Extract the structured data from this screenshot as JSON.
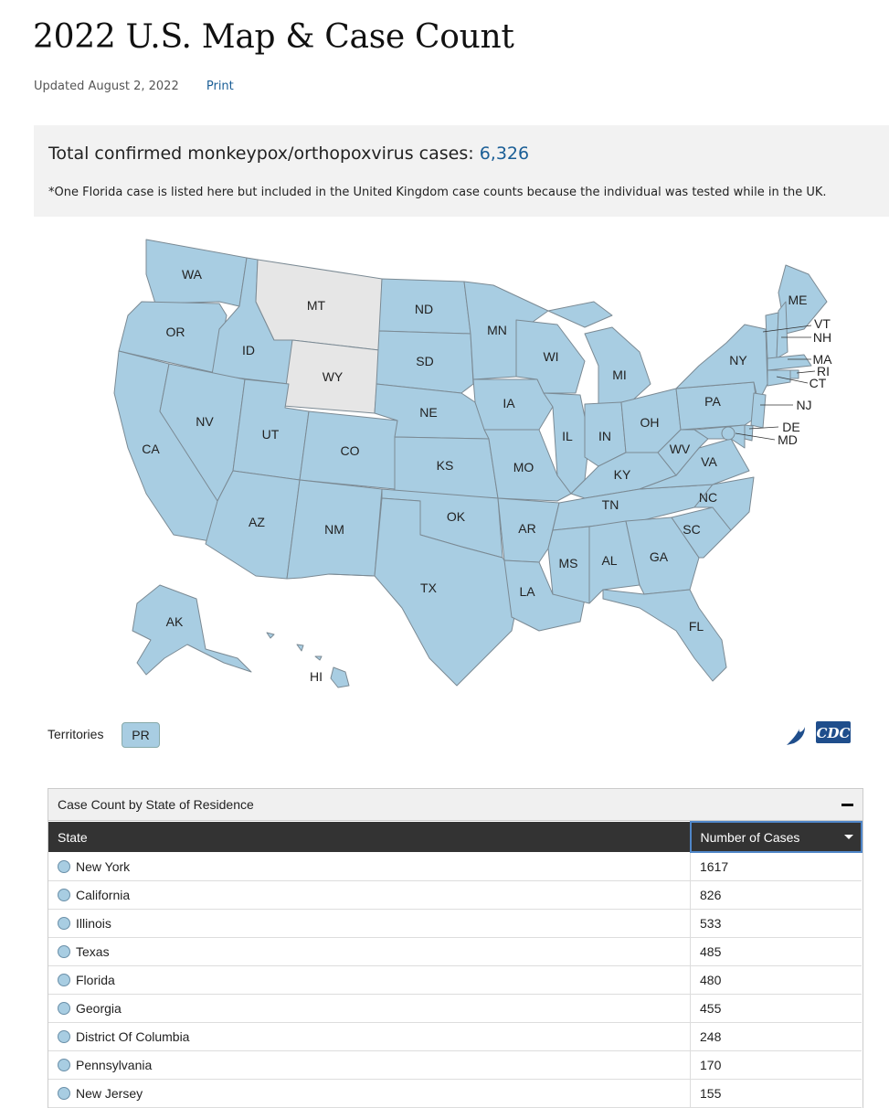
{
  "page": {
    "title": "2022 U.S. Map & Case Count",
    "updated": "Updated August 2, 2022",
    "print_label": "Print"
  },
  "summary": {
    "total_label": "Total confirmed monkeypox/orthopoxvirus cases: ",
    "total_value": "6,326",
    "footnote": "*One Florida case is listed here but included in the United Kingdom case counts because the individual was tested while in the UK."
  },
  "map": {
    "state_labels": [
      "WA",
      "OR",
      "CA",
      "ID",
      "NV",
      "MT",
      "WY",
      "UT",
      "AZ",
      "CO",
      "NM",
      "ND",
      "SD",
      "NE",
      "KS",
      "OK",
      "TX",
      "MN",
      "IA",
      "MO",
      "AR",
      "LA",
      "WI",
      "IL",
      "MI",
      "IN",
      "OH",
      "KY",
      "TN",
      "MS",
      "AL",
      "GA",
      "FL",
      "SC",
      "NC",
      "VA",
      "WV",
      "PA",
      "NY",
      "ME",
      "VT",
      "NH",
      "MA",
      "RI",
      "CT",
      "NJ",
      "DE",
      "MD",
      "AK",
      "HI"
    ],
    "states_without_cases": [
      "MT",
      "WY"
    ],
    "colors": {
      "with_cases": "#a8cde2",
      "no_cases": "#e6e6e6",
      "border": "#7b8a94"
    }
  },
  "territories": {
    "label": "Territories",
    "items": [
      "PR"
    ]
  },
  "logo": {
    "icon": "hhs-eagle-icon",
    "text": "CDC"
  },
  "table": {
    "panel_title": "Case Count by State of Residence",
    "columns": [
      "State",
      "Number of Cases"
    ],
    "rows": [
      {
        "state": "New York",
        "cases": "1617"
      },
      {
        "state": "California",
        "cases": "826"
      },
      {
        "state": "Illinois",
        "cases": "533"
      },
      {
        "state": "Texas",
        "cases": "485"
      },
      {
        "state": "Florida",
        "cases": "480"
      },
      {
        "state": "Georgia",
        "cases": "455"
      },
      {
        "state": "District Of Columbia",
        "cases": "248"
      },
      {
        "state": "Pennsylvania",
        "cases": "170"
      },
      {
        "state": "New Jersey",
        "cases": "155"
      }
    ]
  }
}
